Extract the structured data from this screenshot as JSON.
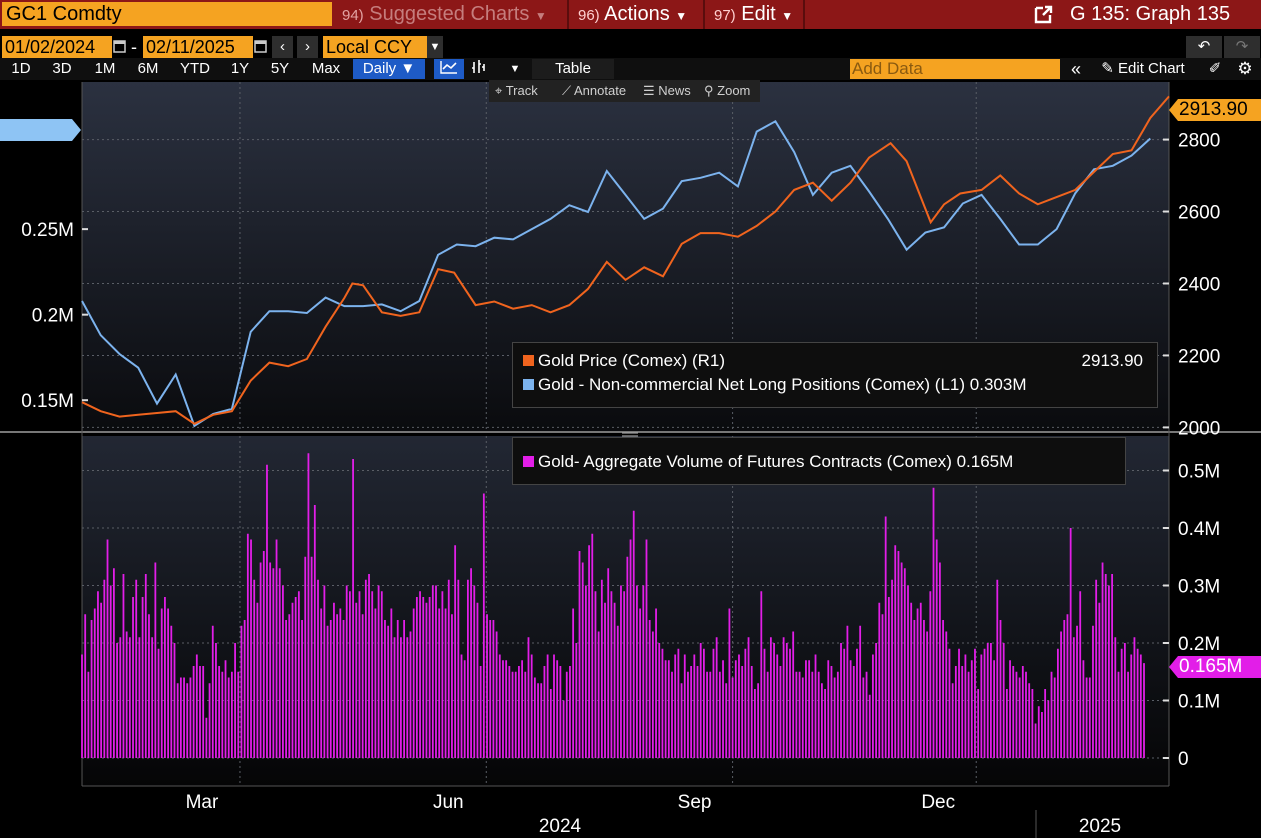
{
  "top_bar": {
    "ticker": "GC1 Comdty",
    "suggested": {
      "num": "94)",
      "label": "Suggested Charts"
    },
    "actions": {
      "num": "96)",
      "label": "Actions"
    },
    "edit": {
      "num": "97)",
      "label": "Edit"
    },
    "graph_label": "G 135: Graph 135"
  },
  "date_bar": {
    "start_date": "01/02/2024",
    "end_date": "02/11/2025",
    "dash": "-",
    "currency": "Local CCY"
  },
  "range_bar": {
    "ranges": [
      "1D",
      "3D",
      "1M",
      "6M",
      "YTD",
      "1Y",
      "5Y",
      "Max"
    ],
    "frequency": "Daily",
    "table_label": "Table",
    "add_data_placeholder": "Add Data",
    "edit_chart_label": "Edit Chart"
  },
  "chart_toolbar": {
    "track": "Track",
    "annotate": "Annotate",
    "news": "News",
    "zoom": "Zoom"
  },
  "colors": {
    "gold_price": "#f0641e",
    "net_long": "#7cb3ee",
    "volume": "#e21ee8",
    "orange_tag": "#f5a321",
    "blue_tag": "#8ec4f4"
  },
  "chart_data": [
    {
      "type": "line",
      "series": [
        {
          "name": "Gold Price (Comex) (R1)",
          "axis": "right",
          "last_value_label": "2913.90",
          "x": [
            "2024-01-02",
            "2024-01-09",
            "2024-01-16",
            "2024-01-23",
            "2024-01-30",
            "2024-02-06",
            "2024-02-13",
            "2024-02-20",
            "2024-02-27",
            "2024-03-05",
            "2024-03-12",
            "2024-03-19",
            "2024-03-26",
            "2024-04-02",
            "2024-04-09",
            "2024-04-12",
            "2024-04-16",
            "2024-04-23",
            "2024-04-30",
            "2024-05-07",
            "2024-05-14",
            "2024-05-20",
            "2024-05-28",
            "2024-06-04",
            "2024-06-11",
            "2024-06-18",
            "2024-06-25",
            "2024-07-02",
            "2024-07-09",
            "2024-07-16",
            "2024-07-23",
            "2024-07-30",
            "2024-08-06",
            "2024-08-13",
            "2024-08-20",
            "2024-08-27",
            "2024-09-03",
            "2024-09-10",
            "2024-09-17",
            "2024-09-24",
            "2024-10-01",
            "2024-10-08",
            "2024-10-15",
            "2024-10-22",
            "2024-10-30",
            "2024-11-05",
            "2024-11-14",
            "2024-11-19",
            "2024-11-25",
            "2024-12-03",
            "2024-12-10",
            "2024-12-17",
            "2024-12-24",
            "2024-12-31",
            "2025-01-07",
            "2025-01-14",
            "2025-01-21",
            "2025-01-28",
            "2025-02-04",
            "2025-02-11"
          ],
          "values": [
            2070,
            2045,
            2030,
            2035,
            2040,
            2045,
            2010,
            2035,
            2045,
            2130,
            2180,
            2170,
            2190,
            2280,
            2360,
            2400,
            2395,
            2320,
            2310,
            2320,
            2440,
            2430,
            2340,
            2350,
            2330,
            2340,
            2320,
            2340,
            2385,
            2460,
            2410,
            2445,
            2420,
            2510,
            2540,
            2540,
            2530,
            2560,
            2600,
            2660,
            2680,
            2630,
            2680,
            2750,
            2790,
            2740,
            2570,
            2620,
            2650,
            2660,
            2700,
            2650,
            2620,
            2640,
            2660,
            2710,
            2760,
            2770,
            2860,
            2920
          ]
        },
        {
          "name": "Gold - Non-commercial Net Long Positions (Comex) (L1)",
          "axis": "left",
          "last_value_label": "0.303M",
          "x": [
            "2024-01-02",
            "2024-01-09",
            "2024-01-16",
            "2024-01-23",
            "2024-01-30",
            "2024-02-06",
            "2024-02-13",
            "2024-02-20",
            "2024-02-27",
            "2024-03-05",
            "2024-03-12",
            "2024-03-19",
            "2024-03-26",
            "2024-04-02",
            "2024-04-09",
            "2024-04-16",
            "2024-04-23",
            "2024-04-30",
            "2024-05-07",
            "2024-05-14",
            "2024-05-21",
            "2024-05-28",
            "2024-06-04",
            "2024-06-11",
            "2024-06-18",
            "2024-06-25",
            "2024-07-02",
            "2024-07-09",
            "2024-07-16",
            "2024-07-23",
            "2024-07-30",
            "2024-08-06",
            "2024-08-13",
            "2024-08-20",
            "2024-08-27",
            "2024-09-03",
            "2024-09-10",
            "2024-09-17",
            "2024-09-24",
            "2024-10-01",
            "2024-10-08",
            "2024-10-15",
            "2024-10-22",
            "2024-10-29",
            "2024-11-05",
            "2024-11-12",
            "2024-11-19",
            "2024-11-26",
            "2024-12-03",
            "2024-12-10",
            "2024-12-17",
            "2024-12-24",
            "2024-12-31",
            "2025-01-07",
            "2025-01-14",
            "2025-01-21",
            "2025-01-28",
            "2025-02-04"
          ],
          "values": [
            0.208,
            0.188,
            0.177,
            0.169,
            0.148,
            0.165,
            0.135,
            0.142,
            0.145,
            0.19,
            0.202,
            0.202,
            0.201,
            0.21,
            0.205,
            0.205,
            0.206,
            0.202,
            0.208,
            0.235,
            0.241,
            0.24,
            0.245,
            0.244,
            0.25,
            0.256,
            0.264,
            0.26,
            0.284,
            0.27,
            0.256,
            0.262,
            0.278,
            0.28,
            0.283,
            0.275,
            0.307,
            0.313,
            0.295,
            0.27,
            0.283,
            0.287,
            0.272,
            0.256,
            0.238,
            0.248,
            0.251,
            0.265,
            0.27,
            0.256,
            0.241,
            0.241,
            0.25,
            0.271,
            0.285,
            0.287,
            0.293,
            0.303
          ]
        }
      ],
      "left_axis": {
        "ticks": [
          0.15,
          0.2,
          0.25
        ],
        "tick_labels": [
          "0.15M",
          "0.2M",
          "0.25M"
        ],
        "range": [
          0.132,
          0.336
        ]
      },
      "right_axis": {
        "ticks": [
          2000,
          2200,
          2400,
          2600,
          2800
        ],
        "tick_labels": [
          "2000",
          "2200",
          "2400",
          "2600",
          "2800"
        ],
        "range": [
          1990,
          2960
        ]
      },
      "legend_placement": "bottom-right",
      "grid": true
    },
    {
      "type": "bar",
      "series": [
        {
          "name": "Gold- Aggregate Volume of Futures Contracts (Comex)",
          "last_value_label": "0.165M",
          "values": [
            0.18,
            0.25,
            0.15,
            0.24,
            0.26,
            0.29,
            0.27,
            0.31,
            0.38,
            0.3,
            0.33,
            0.2,
            0.21,
            0.32,
            0.22,
            0.21,
            0.28,
            0.31,
            0.21,
            0.28,
            0.32,
            0.25,
            0.21,
            0.34,
            0.19,
            0.26,
            0.28,
            0.26,
            0.23,
            0.2,
            0.13,
            0.14,
            0.14,
            0.13,
            0.14,
            0.16,
            0.18,
            0.16,
            0.16,
            0.07,
            0.13,
            0.23,
            0.2,
            0.16,
            0.15,
            0.17,
            0.14,
            0.15,
            0.2,
            0.15,
            0.23,
            0.24,
            0.39,
            0.38,
            0.31,
            0.27,
            0.34,
            0.36,
            0.51,
            0.34,
            0.33,
            0.38,
            0.33,
            0.3,
            0.24,
            0.25,
            0.27,
            0.28,
            0.29,
            0.24,
            0.35,
            0.53,
            0.35,
            0.44,
            0.31,
            0.26,
            0.3,
            0.23,
            0.24,
            0.27,
            0.25,
            0.26,
            0.24,
            0.3,
            0.29,
            0.52,
            0.27,
            0.29,
            0.25,
            0.31,
            0.32,
            0.29,
            0.26,
            0.3,
            0.29,
            0.24,
            0.23,
            0.26,
            0.21,
            0.24,
            0.21,
            0.24,
            0.21,
            0.22,
            0.26,
            0.28,
            0.29,
            0.28,
            0.27,
            0.28,
            0.3,
            0.3,
            0.26,
            0.29,
            0.26,
            0.31,
            0.25,
            0.37,
            0.31,
            0.18,
            0.17,
            0.31,
            0.33,
            0.3,
            0.27,
            0.16,
            0.46,
            0.25,
            0.24,
            0.24,
            0.22,
            0.18,
            0.17,
            0.17,
            0.16,
            0.15,
            0.15,
            0.16,
            0.17,
            0.15,
            0.21,
            0.18,
            0.14,
            0.13,
            0.13,
            0.16,
            0.18,
            0.12,
            0.18,
            0.17,
            0.16,
            0.1,
            0.15,
            0.16,
            0.26,
            0.2,
            0.36,
            0.34,
            0.3,
            0.37,
            0.39,
            0.29,
            0.22,
            0.31,
            0.27,
            0.33,
            0.29,
            0.27,
            0.23,
            0.3,
            0.29,
            0.35,
            0.38,
            0.43,
            0.3,
            0.26,
            0.3,
            0.38,
            0.24,
            0.22,
            0.26,
            0.2,
            0.19,
            0.17,
            0.17,
            0.15,
            0.18,
            0.19,
            0.13,
            0.18,
            0.15,
            0.16,
            0.18,
            0.16,
            0.2,
            0.19,
            0.15,
            0.15,
            0.19,
            0.21,
            0.15,
            0.17,
            0.13,
            0.26,
            0.14,
            0.17,
            0.18,
            0.16,
            0.19,
            0.21,
            0.16,
            0.12,
            0.13,
            0.29,
            0.19,
            0.15,
            0.21,
            0.2,
            0.18,
            0.16,
            0.21,
            0.2,
            0.19,
            0.22,
            0.15,
            0.15,
            0.14,
            0.17,
            0.17,
            0.15,
            0.18,
            0.15,
            0.13,
            0.12,
            0.17,
            0.16,
            0.14,
            0.15,
            0.2,
            0.19,
            0.23,
            0.17,
            0.16,
            0.19,
            0.23,
            0.14,
            0.15,
            0.11,
            0.18,
            0.2,
            0.27,
            0.25,
            0.42,
            0.28,
            0.31,
            0.37,
            0.36,
            0.34,
            0.33,
            0.3,
            0.27,
            0.24,
            0.26,
            0.27,
            0.24,
            0.22,
            0.29,
            0.47,
            0.38,
            0.34,
            0.24,
            0.22,
            0.19,
            0.13,
            0.16,
            0.19,
            0.16,
            0.18,
            0.15,
            0.17,
            0.19,
            0.12,
            0.18,
            0.19,
            0.2,
            0.2,
            0.17,
            0.31,
            0.24,
            0.2,
            0.12,
            0.17,
            0.16,
            0.15,
            0.14,
            0.16,
            0.15,
            0.13,
            0.12,
            0.06,
            0.09,
            0.08,
            0.12,
            0.1,
            0.15,
            0.14,
            0.19,
            0.22,
            0.24,
            0.25,
            0.4,
            0.21,
            0.23,
            0.29,
            0.17,
            0.14,
            0.14,
            0.23,
            0.31,
            0.27,
            0.34,
            0.32,
            0.3,
            0.32,
            0.21,
            0.15,
            0.19,
            0.2,
            0.15,
            0.18,
            0.21,
            0.19,
            0.18,
            0.165
          ]
        }
      ],
      "y_axis": {
        "ticks": [
          0,
          0.1,
          0.2,
          0.3,
          0.4,
          0.5
        ],
        "tick_labels": [
          "0",
          "0.1M",
          "0.2M",
          "0.3M",
          "0.4M",
          "0.5M"
        ],
        "range": [
          0,
          0.56
        ]
      },
      "legend_placement": "top-right",
      "grid": true
    }
  ],
  "x_axis": {
    "month_labels": [
      "Mar",
      "Jun",
      "Sep",
      "Dec"
    ],
    "month_dates": [
      "2024-03-01",
      "2024-06-01",
      "2024-09-01",
      "2024-12-01"
    ],
    "year_labels": [
      "2024",
      "2025"
    ],
    "start": "2024-01-02",
    "end": "2025-02-11"
  }
}
